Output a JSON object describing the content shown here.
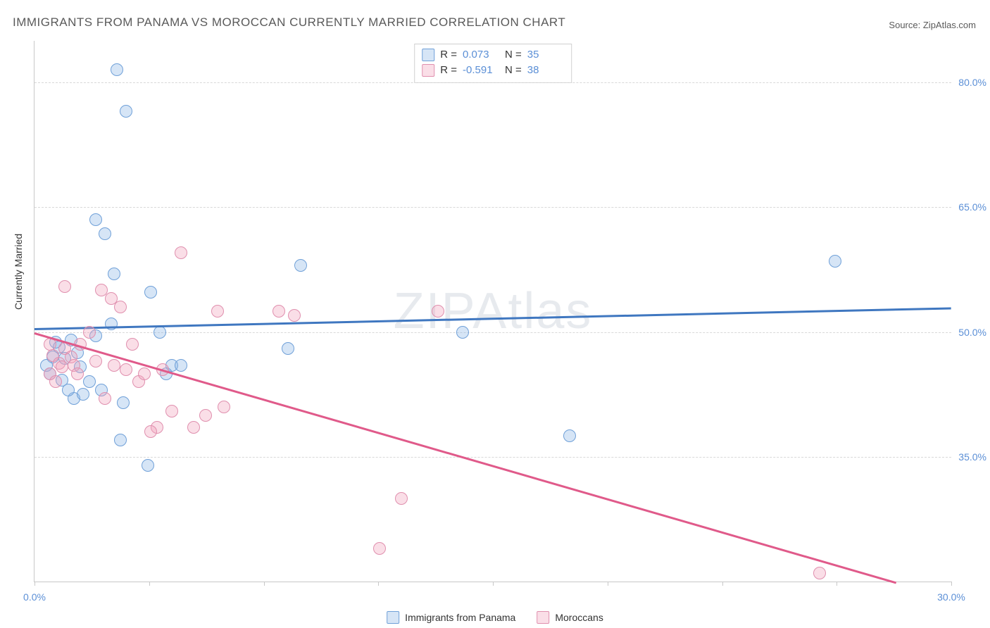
{
  "title": "IMMIGRANTS FROM PANAMA VS MOROCCAN CURRENTLY MARRIED CORRELATION CHART",
  "source_label": "Source:",
  "source_name": "ZipAtlas.com",
  "watermark": "ZIPAtlas",
  "y_axis_label": "Currently Married",
  "chart": {
    "type": "scatter",
    "xlim": [
      0,
      30
    ],
    "ylim": [
      20,
      85
    ],
    "x_ticks": [
      0,
      3.75,
      7.5,
      11.25,
      15,
      18.75,
      22.5,
      26.25,
      30
    ],
    "x_tick_labels": {
      "0": "0.0%",
      "30": "30.0%"
    },
    "y_ticks": [
      35,
      50,
      65,
      80
    ],
    "y_tick_labels": {
      "35": "35.0%",
      "50": "50.0%",
      "65": "65.0%",
      "80": "80.0%"
    },
    "grid_color": "#d8d8d8",
    "background_color": "#ffffff",
    "axis_color": "#c8c8c8",
    "tick_label_color": "#5b8fd6",
    "marker_radius": 8,
    "marker_stroke_width": 1.5,
    "series": [
      {
        "key": "panama",
        "label": "Immigrants from Panama",
        "fill": "rgba(138,180,230,0.35)",
        "stroke": "#6fa0d8",
        "line_color": "#3f77c0",
        "line_width": 2.5,
        "R": "0.073",
        "N": "35",
        "trend": {
          "x1": 0,
          "y1": 50.5,
          "x2": 30,
          "y2": 53.0
        },
        "points": [
          [
            2.7,
            81.5
          ],
          [
            3.0,
            76.5
          ],
          [
            2.0,
            63.5
          ],
          [
            2.3,
            61.8
          ],
          [
            2.6,
            57.0
          ],
          [
            3.8,
            54.8
          ],
          [
            4.1,
            50.0
          ],
          [
            2.5,
            51.0
          ],
          [
            1.2,
            49.0
          ],
          [
            0.8,
            48.2
          ],
          [
            1.0,
            46.8
          ],
          [
            1.5,
            45.8
          ],
          [
            1.8,
            44.0
          ],
          [
            0.6,
            47.0
          ],
          [
            0.4,
            46.0
          ],
          [
            0.5,
            45.0
          ],
          [
            2.2,
            43.0
          ],
          [
            2.9,
            41.5
          ],
          [
            4.5,
            46.0
          ],
          [
            4.8,
            46.0
          ],
          [
            4.3,
            45.0
          ],
          [
            8.7,
            58.0
          ],
          [
            14.0,
            50.0
          ],
          [
            8.3,
            48.0
          ],
          [
            1.3,
            42.0
          ],
          [
            2.8,
            37.0
          ],
          [
            3.7,
            34.0
          ],
          [
            17.5,
            37.5
          ],
          [
            26.2,
            58.5
          ],
          [
            0.9,
            44.2
          ],
          [
            1.1,
            43.0
          ],
          [
            1.6,
            42.5
          ],
          [
            0.7,
            48.8
          ],
          [
            1.4,
            47.5
          ],
          [
            2.0,
            49.5
          ]
        ]
      },
      {
        "key": "moroccans",
        "label": "Moroccans",
        "fill": "rgba(240,160,185,0.35)",
        "stroke": "#e08fae",
        "line_color": "#e05a8a",
        "line_width": 2.5,
        "R": "-0.591",
        "N": "38",
        "trend": {
          "x1": 0,
          "y1": 50.0,
          "x2": 28.2,
          "y2": 20.0
        },
        "points": [
          [
            0.5,
            48.5
          ],
          [
            0.6,
            47.2
          ],
          [
            0.8,
            46.2
          ],
          [
            0.9,
            45.8
          ],
          [
            0.5,
            45.0
          ],
          [
            0.7,
            44.0
          ],
          [
            1.0,
            48.0
          ],
          [
            1.2,
            47.0
          ],
          [
            1.3,
            46.0
          ],
          [
            1.5,
            48.5
          ],
          [
            1.4,
            45.0
          ],
          [
            2.2,
            55.0
          ],
          [
            2.5,
            54.0
          ],
          [
            2.8,
            53.0
          ],
          [
            1.8,
            50.0
          ],
          [
            2.0,
            46.5
          ],
          [
            2.6,
            46.0
          ],
          [
            3.0,
            45.5
          ],
          [
            3.2,
            48.5
          ],
          [
            3.4,
            44.0
          ],
          [
            3.6,
            45.0
          ],
          [
            2.3,
            42.0
          ],
          [
            4.8,
            59.5
          ],
          [
            4.2,
            45.5
          ],
          [
            4.5,
            40.5
          ],
          [
            5.6,
            40.0
          ],
          [
            4.0,
            38.5
          ],
          [
            3.8,
            38.0
          ],
          [
            5.2,
            38.5
          ],
          [
            6.0,
            52.5
          ],
          [
            6.2,
            41.0
          ],
          [
            8.0,
            52.5
          ],
          [
            8.5,
            52.0
          ],
          [
            13.2,
            52.5
          ],
          [
            12.0,
            30.0
          ],
          [
            11.3,
            24.0
          ],
          [
            25.7,
            21.0
          ],
          [
            1.0,
            55.5
          ]
        ]
      }
    ]
  },
  "r_legend": {
    "r_label": "R =",
    "n_label": "N ="
  },
  "bottom_legend_order": [
    "panama",
    "moroccans"
  ]
}
